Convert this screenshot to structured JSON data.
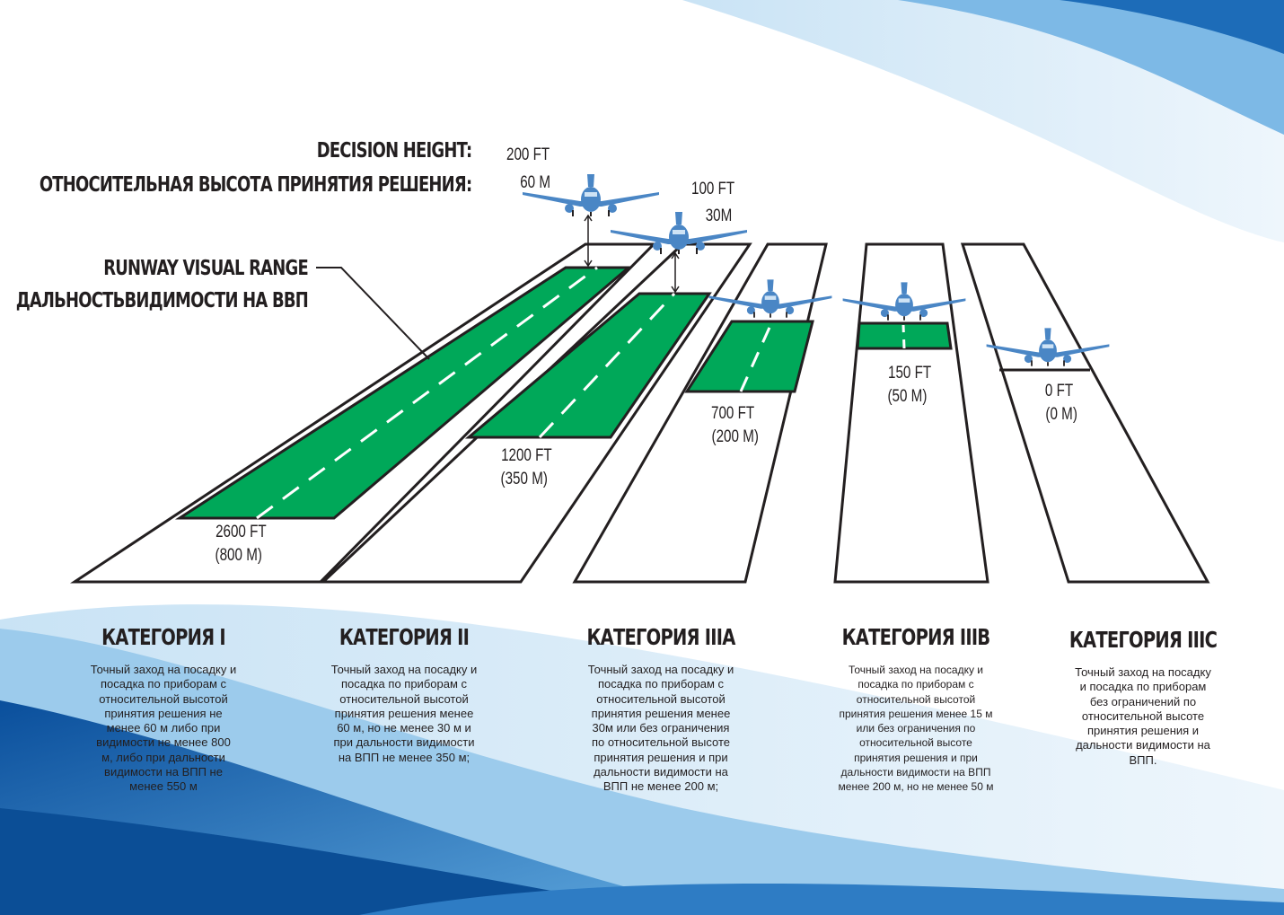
{
  "colors": {
    "green": "#00a859",
    "runway_outline": "#231f20",
    "plane": "#4a86c5",
    "wave_dark": "#0b5aa6",
    "wave_light": "#a9d2ee"
  },
  "header": {
    "decision_height_en": "DECISION HEIGHT:",
    "decision_height_ru": "ОТНОСИТЕЛЬНАЯ ВЫСОТА ПРИНЯТИЯ РЕШЕНИЯ:",
    "rvr_en": "RUNWAY VISUAL RANGE",
    "rvr_ru": "ДАЛЬНОСТЬВИДИМОСТИ НА ВВП"
  },
  "heights": [
    {
      "ft": "200 FT",
      "m": "60 M"
    },
    {
      "ft": "100 FT",
      "m": "30M"
    }
  ],
  "runways": [
    {
      "rvr_ft": "2600 FT",
      "rvr_m": "(800 M)"
    },
    {
      "rvr_ft": "1200 FT",
      "rvr_m": "(350 M)"
    },
    {
      "rvr_ft": "700 FT",
      "rvr_m": "(200 M)"
    },
    {
      "rvr_ft": "150 FT",
      "rvr_m": "(50 M)"
    },
    {
      "rvr_ft": "0 FT",
      "rvr_m": "(0 M)"
    }
  ],
  "categories": [
    {
      "title": "КАТЕГОРИЯ I",
      "text": "Точный заход на посадку и посадка по приборам с относительной высотой принятия решения не менее 60 м либо при видимости не менее 800 м, либо при дальности видимости на ВПП не менее 550 м"
    },
    {
      "title": "КАТЕГОРИЯ II",
      "text": "Точный заход на посадку и посадка по приборам с относительной высотой принятия решения менее 60 м, но не менее 30 м и при дальности видимости на ВПП не менее 350 м;"
    },
    {
      "title": "КАТЕГОРИЯ IIIA",
      "text": "Точный заход на посадку и посадка по приборам с относительной высотой принятия решения менее 30м или без ограничения по относительной высоте принятия решения и при дальности видимости на ВПП не менее 200 м;"
    },
    {
      "title": "КАТЕГОРИЯ IIIB",
      "text": "Точный заход на посадку и посадка по приборам с относительной высотой принятия решения менее 15 м или без ограничения по относительной высоте принятия решения и при дальности видимости на ВПП менее 200 м, но не менее 50 м"
    },
    {
      "title": "КАТЕГОРИЯ IIIC",
      "text": "Точный заход на посадку и посадка по приборам без ограничений по относительной высоте принятия решения и дальности видимости на ВПП."
    }
  ]
}
